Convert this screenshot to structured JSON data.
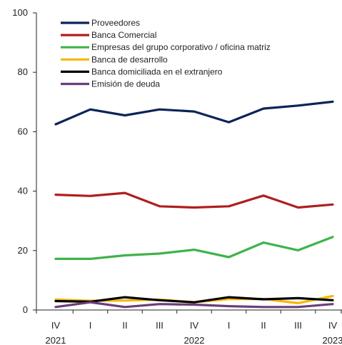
{
  "chart_data": {
    "type": "line",
    "title": "",
    "xlabel": "",
    "ylabel": "",
    "ylim": [
      0,
      100
    ],
    "y_ticks": [
      0,
      20,
      40,
      60,
      80,
      100
    ],
    "categories": [
      "IV",
      "I",
      "II",
      "III",
      "IV",
      "I",
      "II",
      "III",
      "IV"
    ],
    "year_labels": [
      {
        "label": "2021",
        "index": 0
      },
      {
        "label": "2022",
        "index": 4
      },
      {
        "label": "2023",
        "index": 8
      }
    ],
    "grid": false,
    "legend_position": "top-left",
    "series": [
      {
        "name": "Proveedores",
        "color": "#0b2457",
        "values": [
          62.5,
          67.5,
          65.5,
          67.5,
          66.8,
          63.2,
          67.8,
          68.8,
          70.1
        ]
      },
      {
        "name": "Banca Comercial",
        "color": "#b01e1e",
        "values": [
          38.8,
          38.4,
          39.4,
          34.9,
          34.5,
          34.9,
          38.5,
          34.5,
          35.5
        ]
      },
      {
        "name": "Empresas del grupo corporativo / oficina matriz",
        "color": "#3fb34a",
        "values": [
          17.2,
          17.2,
          18.4,
          19.0,
          20.3,
          17.8,
          22.7,
          20.1,
          24.6
        ]
      },
      {
        "name": "Banca de desarrollo",
        "color": "#f5b800",
        "values": [
          3.5,
          3.1,
          3.2,
          3.5,
          2.6,
          3.7,
          3.7,
          2.3,
          4.7
        ]
      },
      {
        "name": "Banca domiciliada en el extranjero",
        "color": "#000000",
        "values": [
          3.0,
          2.8,
          4.3,
          3.3,
          2.6,
          4.3,
          3.6,
          4.0,
          3.3
        ]
      },
      {
        "name": "Emisión de deuda",
        "color": "#6a3d7c",
        "values": [
          1.0,
          2.6,
          1.0,
          2.0,
          1.8,
          1.3,
          1.0,
          1.0,
          2.0
        ]
      }
    ]
  }
}
